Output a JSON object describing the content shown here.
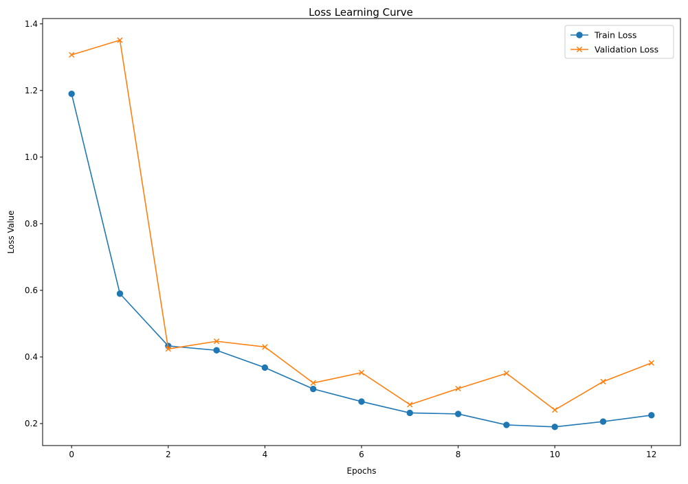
{
  "chart_data": {
    "type": "line",
    "title": "Loss Learning Curve",
    "xlabel": "Epochs",
    "ylabel": "Loss Value",
    "x": [
      0,
      1,
      2,
      3,
      4,
      5,
      6,
      7,
      8,
      9,
      10,
      11,
      12
    ],
    "xlim": [
      -0.6,
      12.6
    ],
    "ylim": [
      0.134,
      1.416
    ],
    "xticks": [
      0,
      2,
      4,
      6,
      8,
      10,
      12
    ],
    "yticks": [
      0.2,
      0.4,
      0.6,
      0.8,
      1.0,
      1.2,
      1.4
    ],
    "ytick_labels": [
      "0.2",
      "0.4",
      "0.6",
      "0.8",
      "1.0",
      "1.2",
      "1.4"
    ],
    "grid": false,
    "legend_position": "top-right",
    "series": [
      {
        "name": "Train Loss",
        "color": "#1f77b4",
        "marker": "circle",
        "values": [
          1.19,
          0.59,
          0.433,
          0.42,
          0.368,
          0.304,
          0.266,
          0.232,
          0.229,
          0.196,
          0.19,
          0.206,
          0.225
        ]
      },
      {
        "name": "Validation Loss",
        "color": "#ff7f0e",
        "marker": "x",
        "values": [
          1.307,
          1.351,
          0.424,
          0.447,
          0.43,
          0.322,
          0.353,
          0.257,
          0.305,
          0.351,
          0.241,
          0.326,
          0.382
        ]
      }
    ]
  }
}
